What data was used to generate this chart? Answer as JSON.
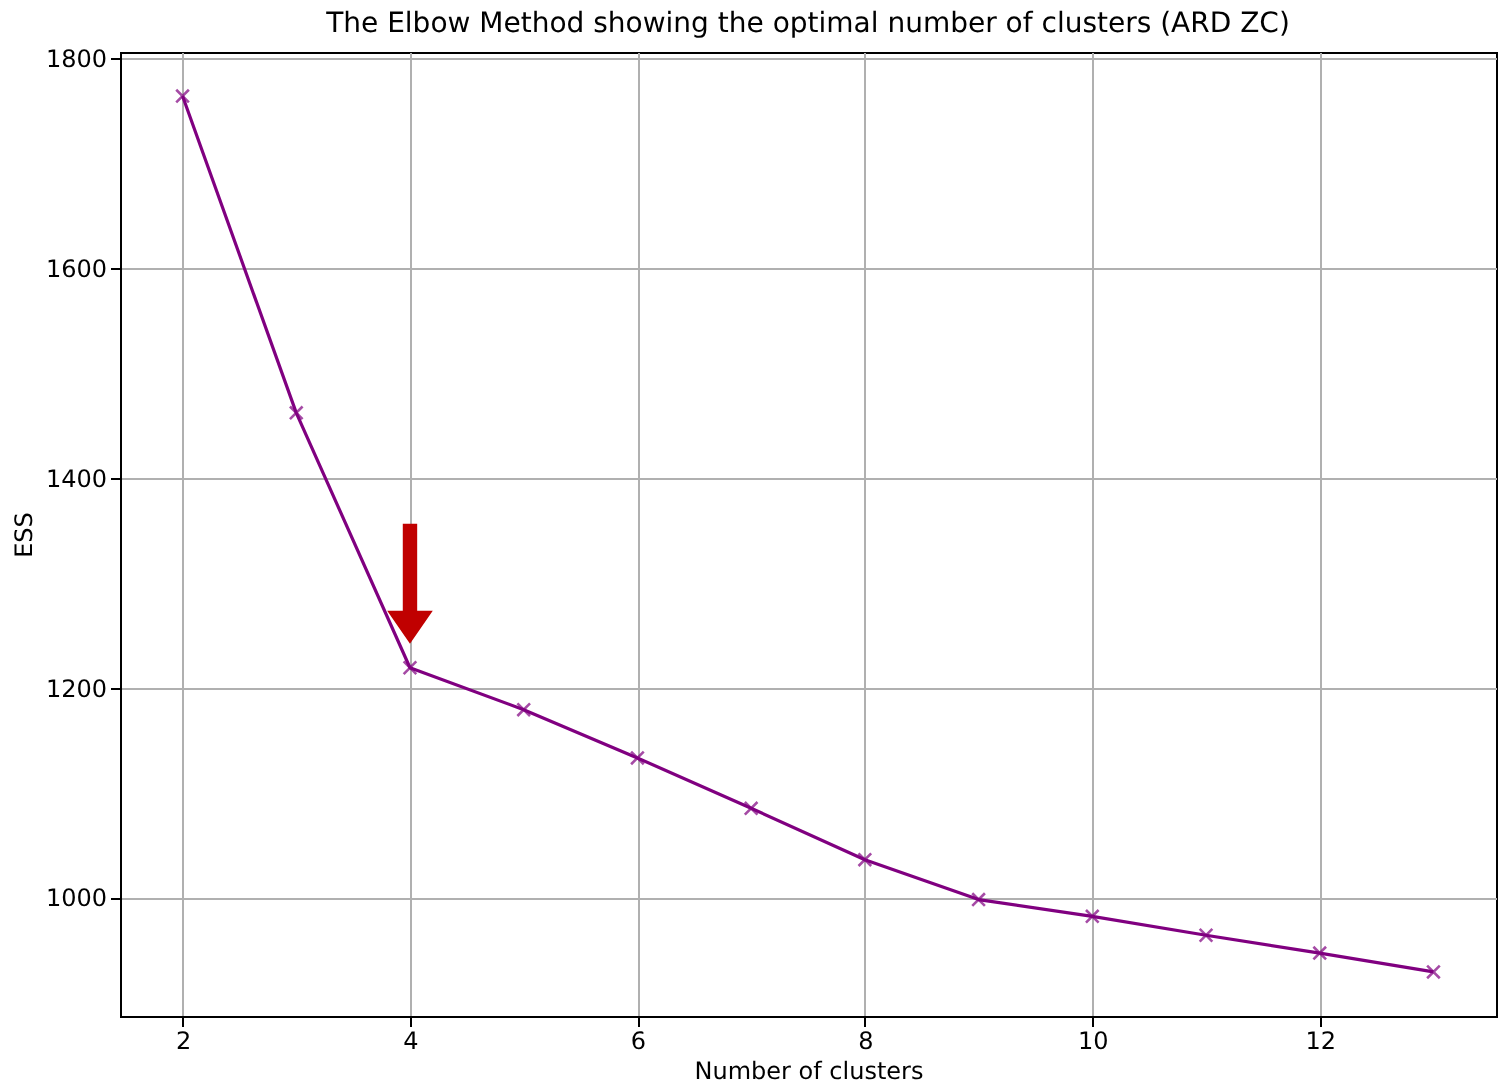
{
  "chart_data": {
    "type": "line",
    "title": "The Elbow Method showing the optimal number of clusters (ARD ZC)",
    "xlabel": "Number of clusters",
    "ylabel": "ESS",
    "x": [
      2,
      3,
      4,
      5,
      6,
      7,
      8,
      9,
      10,
      11,
      12,
      13
    ],
    "series": [
      {
        "color": "#800080",
        "values": [
          1764,
          1462,
          1219,
          1179,
          1133,
          1085,
          1036,
          998,
          982,
          964,
          947,
          929
        ]
      }
    ],
    "xlim": [
      1.45,
      13.55
    ],
    "ylim": [
      887,
      1806
    ],
    "xticks": [
      2,
      4,
      6,
      8,
      10,
      12
    ],
    "yticks": [
      1000,
      1200,
      1400,
      1600,
      1800
    ],
    "grid": true,
    "marker": "cross",
    "line_style": "solid"
  }
}
